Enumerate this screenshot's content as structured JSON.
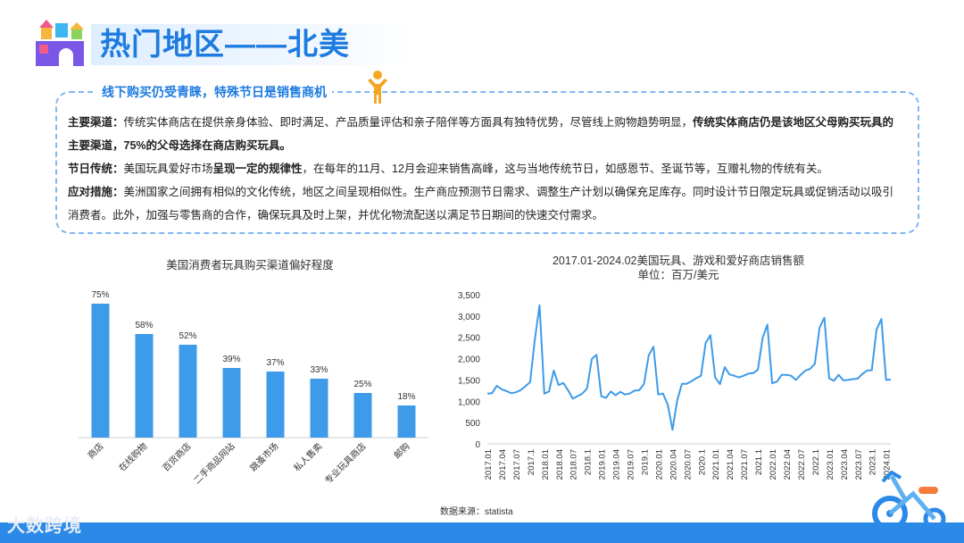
{
  "header": {
    "title": "热门地区——北美"
  },
  "panel": {
    "heading": "线下购买仍受青睐，特殊节日是销售商机",
    "paragraphs": [
      [
        {
          "t": "主要渠道：",
          "b": true
        },
        {
          "t": "传统实体商店在提供亲身体验、即时满足、产品质量评估和亲子陪伴等方面具有独特优势，尽管线上购物趋势明显，",
          "b": false
        },
        {
          "t": "传统实体商店仍是该地区父母购买玩具的主要渠道，75%的父母选择在商店购买玩具。",
          "b": true
        }
      ],
      [
        {
          "t": "节日传统：",
          "b": true
        },
        {
          "t": "美国玩具爱好市场",
          "b": false
        },
        {
          "t": "呈现一定的规律性",
          "b": true
        },
        {
          "t": "，在每年的11月、12月会迎来销售高峰，这与当地传统节日，如感恩节、圣诞节等，互赠礼物的传统有关。",
          "b": false
        }
      ],
      [
        {
          "t": "应对措施：",
          "b": true
        },
        {
          "t": "美洲国家之间拥有相似的文化传统，地区之间呈现相似性。生产商应预测节日需求、调整生产计划以确保充足库存。同时设计节日限定玩具或促销活动以吸引消费者。此外，加强与零售商的合作，确保玩具及时上架，并优化物流配送以满足节日期间的快速交付需求。",
          "b": false
        }
      ]
    ]
  },
  "source": "数据来源：statista",
  "footer": {
    "brand": "大数跨境"
  },
  "colors": {
    "accent": "#1e7be0",
    "bar": "#3d9be9",
    "line": "#3d9be9",
    "footer": "#2b8ae8"
  },
  "icons": [
    "building-blocks-icon",
    "person-icon",
    "tricycle-icon"
  ],
  "chart_data": [
    {
      "type": "bar",
      "title": "美国消费者玩具购买渠道偏好程度",
      "categories": [
        "商店",
        "在线购物",
        "百货商店",
        "二手商品网站",
        "跳蚤市场",
        "私人售卖",
        "专业玩具商店",
        "邮购"
      ],
      "values": [
        75,
        58,
        52,
        39,
        37,
        33,
        25,
        18
      ],
      "value_labels": [
        "75%",
        "58%",
        "52%",
        "39%",
        "37%",
        "33%",
        "25%",
        "18%"
      ],
      "ylim": [
        0,
        80
      ],
      "grid": false
    },
    {
      "type": "line",
      "title": "2017.01-2024.02美国玩具、游戏和爱好商店销售额",
      "subtitle": "单位：百万/美元",
      "ylim": [
        0,
        3500
      ],
      "yticks": [
        0,
        500,
        1000,
        1500,
        2000,
        2500,
        3000,
        3500
      ],
      "ytick_labels": [
        "0",
        "500",
        "1,000",
        "1,500",
        "2,000",
        "2,500",
        "3,000",
        "3,500"
      ],
      "xtick_labels": [
        "2017.01",
        "2017.04",
        "2017.07",
        "2017.1",
        "2018.01",
        "2018.04",
        "2018.07",
        "2018.1",
        "2019.01",
        "2019.04",
        "2019.07",
        "2019.1",
        "2020.01",
        "2020.04",
        "2020.07",
        "2020.1",
        "2021.01",
        "2021.04",
        "2021.07",
        "2021.1",
        "2022.01",
        "2022.04",
        "2022.07",
        "2022.1",
        "2023.01",
        "2023.04",
        "2023.07",
        "2023.1",
        "2024.01"
      ],
      "grid": false,
      "series": [
        {
          "values": [
            1180,
            1190,
            1360,
            1280,
            1240,
            1190,
            1210,
            1260,
            1350,
            1450,
            2450,
            3250,
            1180,
            1230,
            1720,
            1380,
            1430,
            1260,
            1060,
            1120,
            1180,
            1300,
            1990,
            2090,
            1120,
            1080,
            1230,
            1140,
            1220,
            1160,
            1180,
            1250,
            1260,
            1410,
            2080,
            2280,
            1160,
            1180,
            920,
            330,
            1020,
            1410,
            1410,
            1470,
            1540,
            1600,
            2370,
            2550,
            1560,
            1400,
            1800,
            1630,
            1600,
            1560,
            1600,
            1650,
            1660,
            1740,
            2490,
            2800,
            1420,
            1460,
            1620,
            1620,
            1600,
            1500,
            1620,
            1720,
            1760,
            1880,
            2730,
            2960,
            1540,
            1480,
            1620,
            1490,
            1500,
            1520,
            1530,
            1640,
            1720,
            1730,
            2680,
            2930,
            1500,
            1510
          ]
        }
      ]
    }
  ]
}
